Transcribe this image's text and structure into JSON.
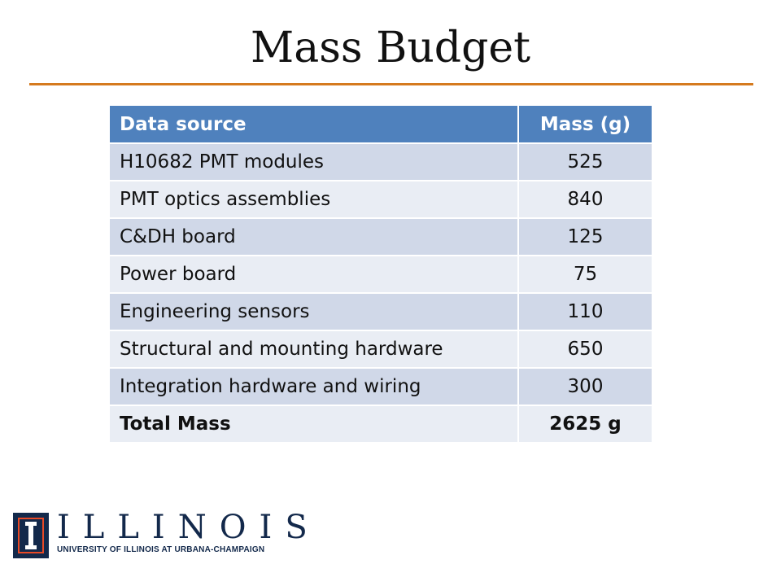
{
  "slide": {
    "title": "Mass Budget"
  },
  "table": {
    "headers": [
      "Data source",
      "Mass (g)"
    ],
    "rows": [
      {
        "source": "H10682 PMT modules",
        "mass": "525"
      },
      {
        "source": "PMT optics assemblies",
        "mass": "840"
      },
      {
        "source": "C&DH board",
        "mass": "125"
      },
      {
        "source": "Power board",
        "mass": "75"
      },
      {
        "source": "Engineering sensors",
        "mass": "110"
      },
      {
        "source": "Structural and mounting hardware",
        "mass": "650"
      },
      {
        "source": "Integration hardware and wiring",
        "mass": "300"
      }
    ],
    "total": {
      "source": "Total Mass",
      "mass": "2625 g"
    }
  },
  "logo": {
    "wordmark": "ILLINOIS",
    "subtitle": "UNIVERSITY OF ILLINOIS AT URBANA-CHAMPAIGN"
  },
  "colors": {
    "accent_orange": "#D57A1E",
    "header_blue": "#4F81BD",
    "row_dark": "#D0D8E8",
    "row_light": "#E9EDF4",
    "illinois_blue": "#13294B",
    "illinois_orange": "#E84A27"
  }
}
